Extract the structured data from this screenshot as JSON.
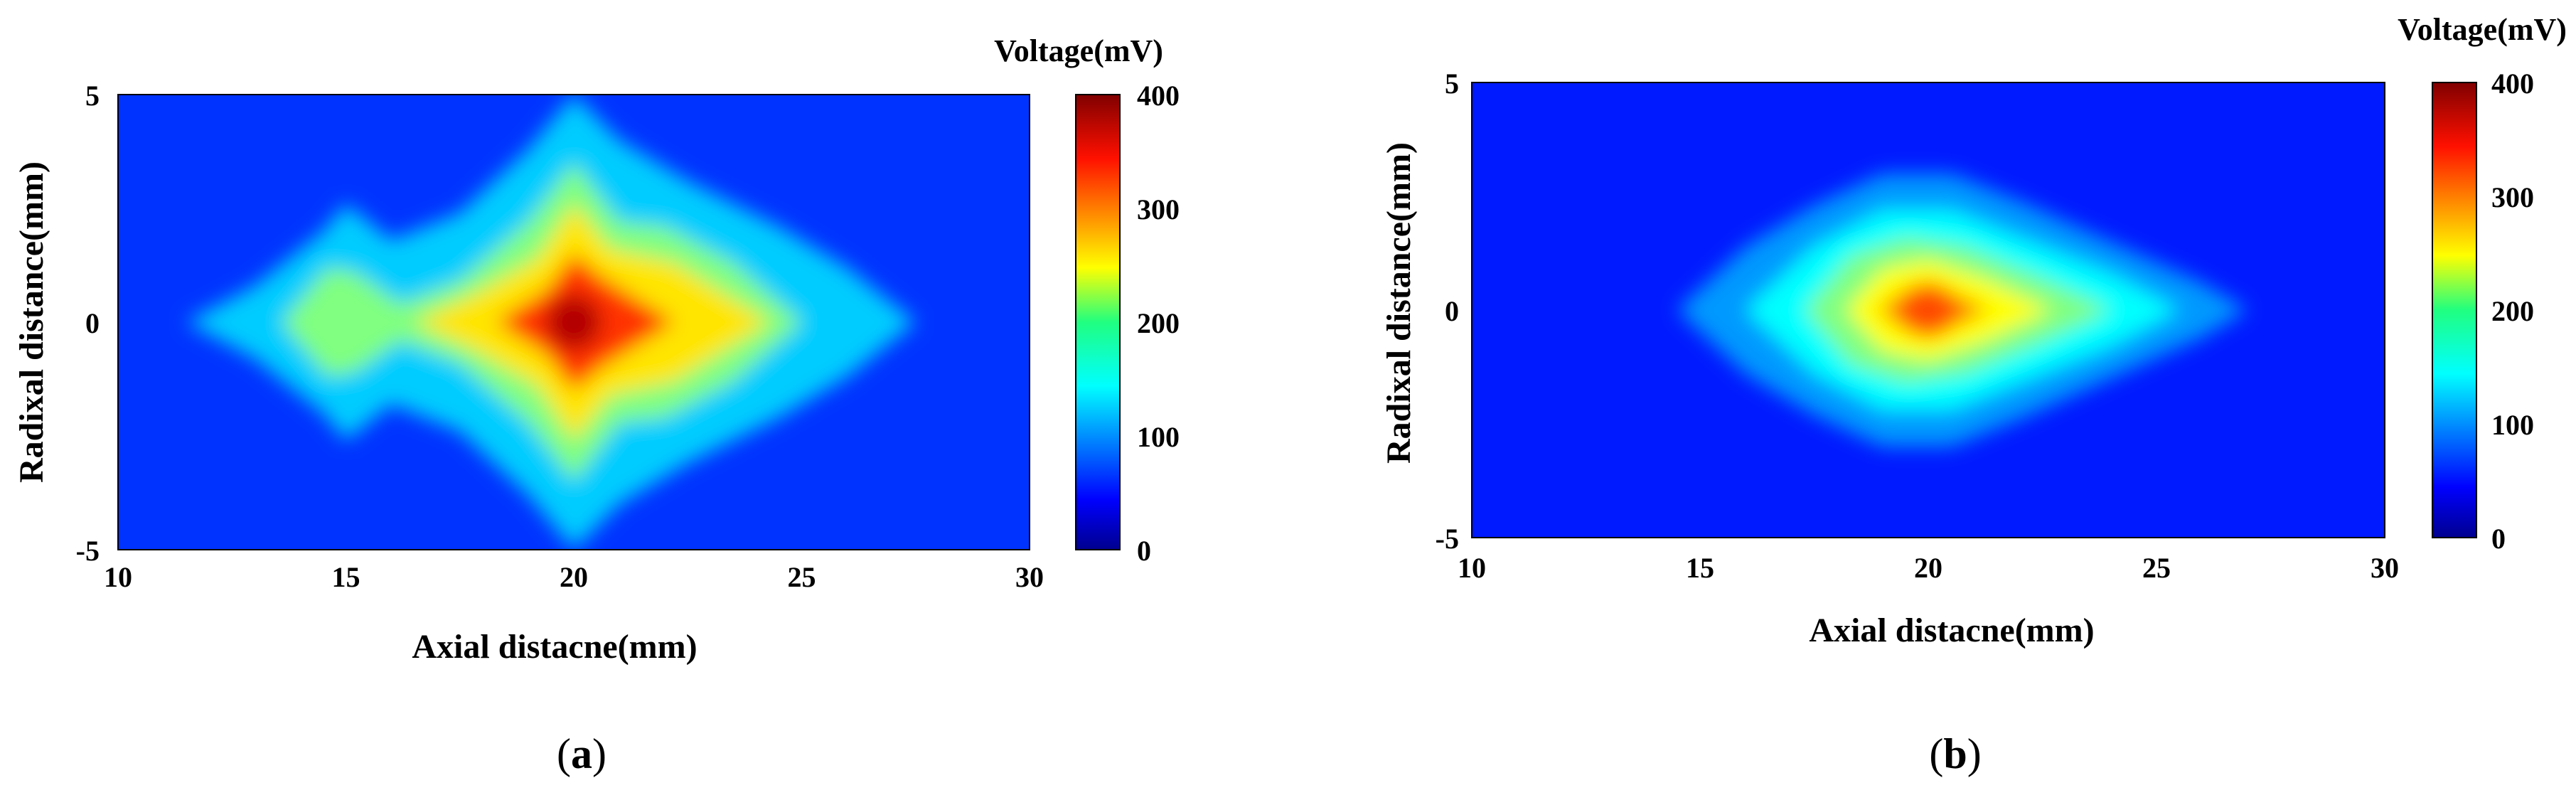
{
  "chart_data": [
    {
      "type": "heatmap",
      "panel_label": "(a)",
      "panel_letter": "a",
      "xlabel": "Axial distacne(mm)",
      "ylabel": "Radixal distance(mm)",
      "xlim": [
        10,
        30
      ],
      "ylim": [
        -5,
        5
      ],
      "x_ticks": [
        "10",
        "15",
        "20",
        "25",
        "30"
      ],
      "y_ticks": [
        "5",
        "0",
        "-5"
      ],
      "colorbar": {
        "title": "Voltage(mV)",
        "range": [
          0,
          400
        ],
        "ticks": [
          "400",
          "300",
          "200",
          "100",
          "0"
        ]
      },
      "background_mV": 70,
      "peak": {
        "x": 20,
        "y": 0,
        "value_mV": 380
      },
      "contours_mV": [
        {
          "level": 130,
          "shape": [
            [
              11.5,
              0
            ],
            [
              13,
              0.8
            ],
            [
              14.5,
              2
            ],
            [
              15,
              2.6
            ],
            [
              16,
              1.8
            ],
            [
              17.5,
              2.4
            ],
            [
              19,
              3.8
            ],
            [
              20,
              5
            ],
            [
              21,
              4
            ],
            [
              22.5,
              3.1
            ],
            [
              24.5,
              2.1
            ],
            [
              26,
              1.2
            ],
            [
              27.5,
              0
            ],
            [
              26,
              -1.2
            ],
            [
              24.5,
              -2.1
            ],
            [
              22.5,
              -3.1
            ],
            [
              21,
              -4
            ],
            [
              20,
              -5
            ],
            [
              19,
              -3.8
            ],
            [
              17.5,
              -2.4
            ],
            [
              16,
              -1.8
            ],
            [
              15,
              -2.6
            ],
            [
              14.5,
              -2
            ],
            [
              13,
              -0.8
            ]
          ]
        },
        {
          "level": 200,
          "shape": [
            [
              13.6,
              0
            ],
            [
              14.6,
              1.2
            ],
            [
              15.2,
              1.1
            ],
            [
              16.2,
              0.4
            ],
            [
              17.5,
              0.9
            ],
            [
              19,
              2.2
            ],
            [
              20,
              3.5
            ],
            [
              21,
              2.2
            ],
            [
              22,
              2.1
            ],
            [
              23.5,
              1.3
            ],
            [
              25,
              0
            ],
            [
              23.5,
              -1.3
            ],
            [
              22,
              -2.1
            ],
            [
              21,
              -2.2
            ],
            [
              20,
              -3.5
            ],
            [
              19,
              -2.2
            ],
            [
              17.5,
              -0.9
            ],
            [
              16.2,
              -0.4
            ],
            [
              15.2,
              -1.1
            ],
            [
              14.6,
              -1.2
            ]
          ]
        },
        {
          "level": 260,
          "shape": [
            [
              16.5,
              0
            ],
            [
              17.8,
              0.6
            ],
            [
              19.2,
              1.4
            ],
            [
              20,
              2.6
            ],
            [
              20.8,
              1.6
            ],
            [
              22.2,
              1.3
            ],
            [
              24.3,
              0
            ],
            [
              22.2,
              -1.3
            ],
            [
              20.8,
              -1.6
            ],
            [
              20,
              -2.6
            ],
            [
              19.2,
              -1.4
            ],
            [
              17.8,
              -0.6
            ]
          ]
        },
        {
          "level": 330,
          "shape": [
            [
              18.3,
              0
            ],
            [
              19.4,
              0.7
            ],
            [
              20,
              1.5
            ],
            [
              20.6,
              1
            ],
            [
              22.2,
              0
            ],
            [
              20.6,
              -1
            ],
            [
              20,
              -1.5
            ],
            [
              19.4,
              -0.7
            ]
          ]
        }
      ]
    },
    {
      "type": "heatmap",
      "panel_label": "(b)",
      "panel_letter": "b",
      "xlabel": "Axial distacne(mm)",
      "ylabel": "Radixal distance(mm)",
      "xlim": [
        10,
        30
      ],
      "ylim": [
        -5,
        5
      ],
      "x_ticks": [
        "10",
        "15",
        "20",
        "25",
        "30"
      ],
      "y_ticks": [
        "5",
        "0",
        "-5"
      ],
      "colorbar": {
        "title": "Voltage(mV)",
        "range": [
          0,
          400
        ],
        "ticks": [
          "400",
          "300",
          "200",
          "100",
          "0"
        ]
      },
      "background_mV": 60,
      "peak": {
        "x": 20,
        "y": 0,
        "value_mV": 320
      },
      "contours_mV": [
        {
          "level": 110,
          "shape": [
            [
              14.5,
              0
            ],
            [
              16,
              1.4
            ],
            [
              17.5,
              2.3
            ],
            [
              19,
              3
            ],
            [
              20.5,
              3
            ],
            [
              22,
              2.4
            ],
            [
              24,
              1.5
            ],
            [
              26,
              0.6
            ],
            [
              27,
              0
            ],
            [
              26,
              -0.6
            ],
            [
              24,
              -1.5
            ],
            [
              22,
              -2.4
            ],
            [
              20.5,
              -3
            ],
            [
              19,
              -3
            ],
            [
              17.5,
              -2.3
            ],
            [
              16,
              -1.4
            ]
          ]
        },
        {
          "level": 150,
          "shape": [
            [
              16,
              0
            ],
            [
              17.5,
              1.4
            ],
            [
              19,
              2.2
            ],
            [
              20.5,
              2.2
            ],
            [
              22,
              1.6
            ],
            [
              24,
              0.8
            ],
            [
              25.5,
              0
            ],
            [
              24,
              -0.8
            ],
            [
              22,
              -1.6
            ],
            [
              20.5,
              -2.2
            ],
            [
              19,
              -2.2
            ],
            [
              17.5,
              -1.4
            ]
          ]
        },
        {
          "level": 200,
          "shape": [
            [
              17.3,
              0
            ],
            [
              18.3,
              1.2
            ],
            [
              19.5,
              1.6
            ],
            [
              20.8,
              1.4
            ],
            [
              22.5,
              0.7
            ],
            [
              24,
              0
            ],
            [
              22.5,
              -0.7
            ],
            [
              20.8,
              -1.4
            ],
            [
              19.5,
              -1.6
            ],
            [
              18.3,
              -1.2
            ]
          ]
        },
        {
          "level": 250,
          "shape": [
            [
              18.2,
              0
            ],
            [
              19,
              0.9
            ],
            [
              20,
              1.1
            ],
            [
              21.2,
              0.7
            ],
            [
              22.7,
              0
            ],
            [
              21.2,
              -0.7
            ],
            [
              20,
              -1.1
            ],
            [
              19,
              -0.9
            ]
          ]
        },
        {
          "level": 300,
          "shape": [
            [
              18.9,
              0
            ],
            [
              19.6,
              0.5
            ],
            [
              20.3,
              0.5
            ],
            [
              21.3,
              0
            ],
            [
              20.3,
              -0.5
            ],
            [
              19.6,
              -0.5
            ]
          ]
        }
      ]
    }
  ]
}
